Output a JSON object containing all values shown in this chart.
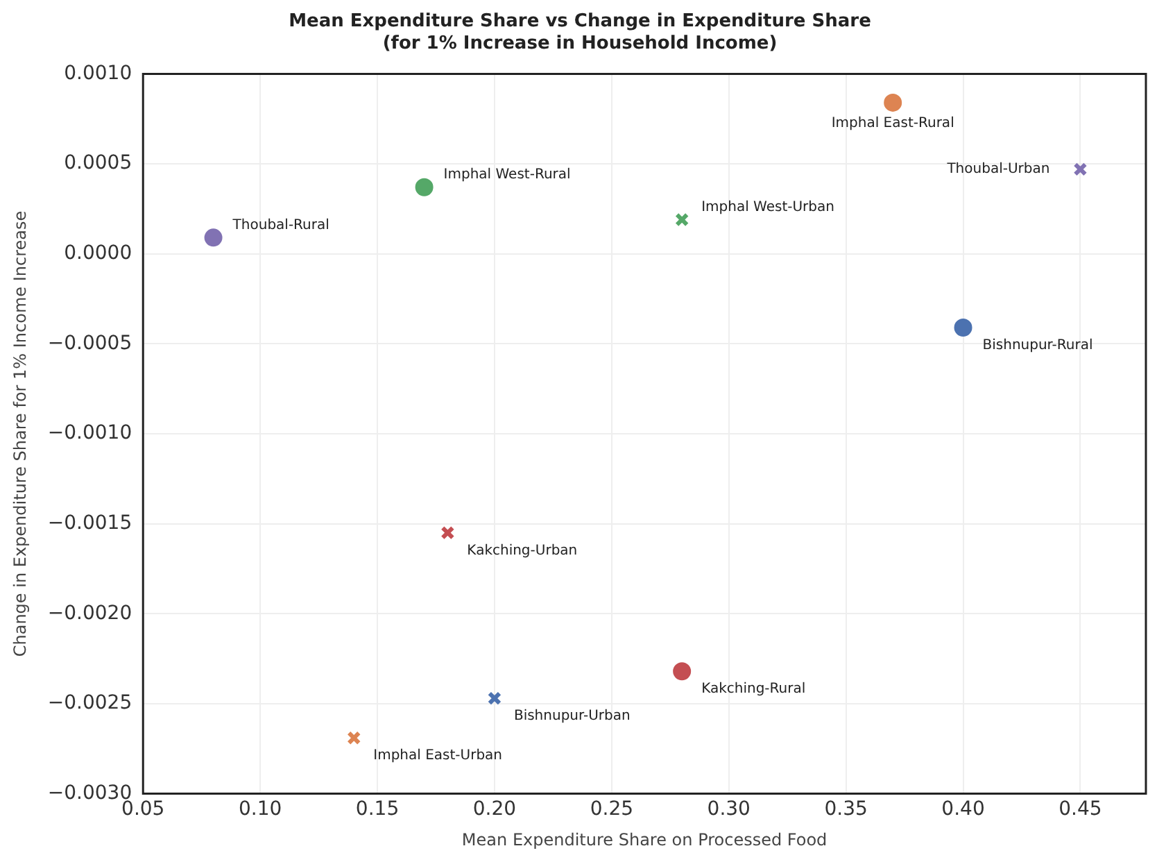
{
  "chart_data": {
    "type": "scatter",
    "title": "Mean Expenditure Share vs Change in Expenditure Share\n(for 1% Increase in Household Income)",
    "xlabel": "Mean Expenditure Share on Processed Food",
    "ylabel": "Change in Expenditure Share for 1% Income Increase",
    "series": [
      {
        "marker": "circle",
        "x": [
          0.08,
          0.17,
          0.37,
          0.4,
          0.28
        ],
        "values": [
          9e-05,
          0.00037,
          0.00084,
          -0.00041,
          -0.00232
        ],
        "colors": [
          "#8172b3",
          "#55a868",
          "#dd8452",
          "#4c72b0",
          "#c44e52"
        ]
      },
      {
        "marker": "cross",
        "x": [
          0.28,
          0.45,
          0.18,
          0.2,
          0.14
        ],
        "values": [
          0.00019,
          0.00047,
          -0.00155,
          -0.00247,
          -0.00269
        ],
        "colors": [
          "#55a868",
          "#8172b3",
          "#c44e52",
          "#4c72b0",
          "#dd8452"
        ]
      }
    ],
    "annotations": [
      {
        "text": "Thoubal-Rural",
        "x": 0.08,
        "y": 9e-05
      },
      {
        "text": "Imphal West-Rural",
        "x": 0.17,
        "y": 0.00037
      },
      {
        "text": "Imphal East-Rural",
        "x": 0.37,
        "y": 0.00084
      },
      {
        "text": "Bishnupur-Rural",
        "x": 0.4,
        "y": -0.00041
      },
      {
        "text": "Kakching-Rural",
        "x": 0.28,
        "y": -0.00232
      },
      {
        "text": "Imphal West-Urban",
        "x": 0.28,
        "y": 0.00019
      },
      {
        "text": "Thoubal-Urban",
        "x": 0.45,
        "y": 0.00047
      },
      {
        "text": "Kakching-Urban",
        "x": 0.18,
        "y": -0.00155
      },
      {
        "text": "Bishnupur-Urban",
        "x": 0.2,
        "y": -0.00247
      },
      {
        "text": "Imphal East-Urban",
        "x": 0.14,
        "y": -0.00269
      }
    ],
    "xlim": [
      0.05,
      0.478
    ],
    "xticks": [
      {
        "value": 0.05,
        "label": "0.05"
      },
      {
        "value": 0.1,
        "label": "0.10"
      },
      {
        "value": 0.15,
        "label": "0.15"
      },
      {
        "value": 0.2,
        "label": "0.20"
      },
      {
        "value": 0.25,
        "label": "0.25"
      },
      {
        "value": 0.3,
        "label": "0.30"
      },
      {
        "value": 0.35,
        "label": "0.35"
      },
      {
        "value": 0.4,
        "label": "0.40"
      },
      {
        "value": 0.45,
        "label": "0.45"
      }
    ],
    "ylim": [
      -0.003,
      0.001
    ],
    "yticks": [
      {
        "value": -0.003,
        "label": "−0.0030"
      },
      {
        "value": -0.0025,
        "label": "−0.0025"
      },
      {
        "value": -0.002,
        "label": "−0.0020"
      },
      {
        "value": -0.0015,
        "label": "−0.0015"
      },
      {
        "value": -0.001,
        "label": "−0.0010"
      },
      {
        "value": -0.0005,
        "label": "−0.0005"
      },
      {
        "value": 0,
        "label": "0.0000"
      },
      {
        "value": 0.0005,
        "label": "0.0005"
      },
      {
        "value": 0.001,
        "label": "0.0010"
      }
    ],
    "grid": true,
    "legend": false
  }
}
